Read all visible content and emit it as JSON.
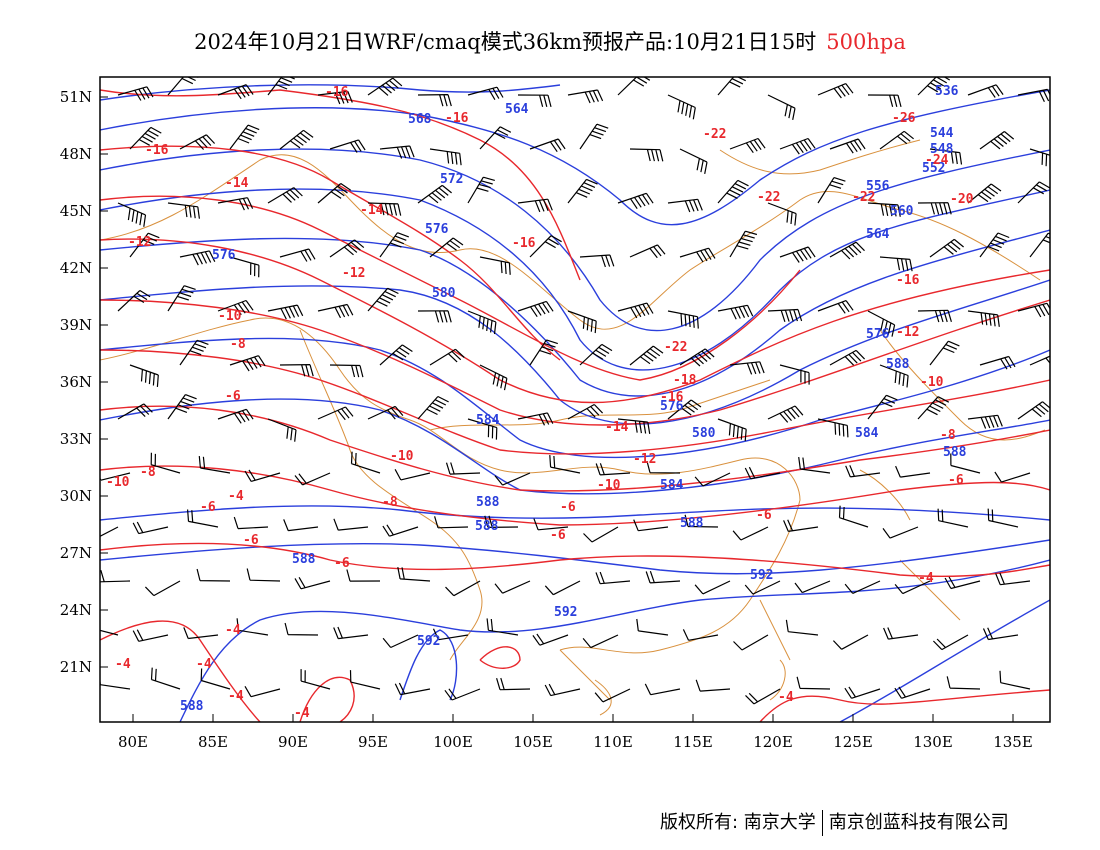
{
  "title": {
    "main": "2024年10月21日WRF/cmaq模式36km预报产品:10月21日15时",
    "level": "500hpa",
    "level_color": "#e8282d"
  },
  "map": {
    "lon_ticks": [
      "80E",
      "85E",
      "90E",
      "95E",
      "100E",
      "105E",
      "110E",
      "115E",
      "120E",
      "125E",
      "130E",
      "135E"
    ],
    "lat_ticks": [
      "51N",
      "48N",
      "45N",
      "42N",
      "39N",
      "36N",
      "33N",
      "30N",
      "27N",
      "24N",
      "21N"
    ],
    "colors": {
      "height_contour": "#2b3fdc",
      "temperature_contour": "#e8282d",
      "coastline_border": "#d9913e",
      "wind_barb": "#000000"
    },
    "height_labels": [
      "536",
      "544",
      "548",
      "552",
      "556",
      "560",
      "564",
      "568",
      "572",
      "576",
      "580",
      "584",
      "588",
      "592"
    ],
    "temperature_labels": [
      "-26",
      "-24",
      "-22",
      "-20",
      "-18",
      "-16",
      "-14",
      "-12",
      "-10",
      "-8",
      "-6",
      "-4"
    ]
  },
  "credit": {
    "left": "版权所有: 南京大学",
    "right": "南京创蓝科技有限公司"
  }
}
